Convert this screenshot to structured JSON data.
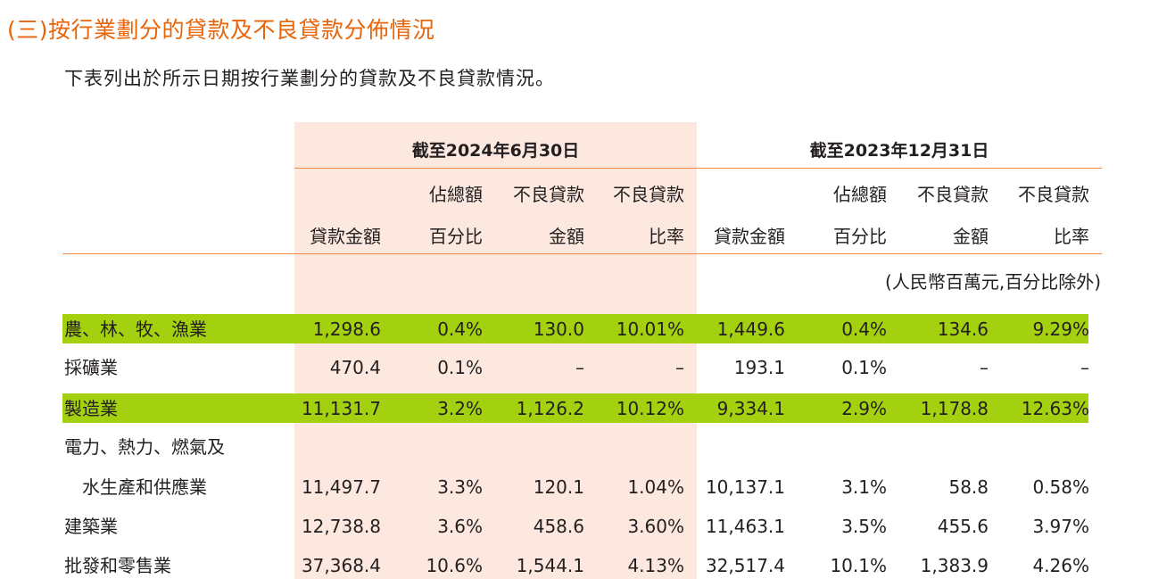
{
  "section_title": "(三)按行業劃分的貸款及不良貸款分佈情況",
  "intro": "下表列出於所示日期按行業劃分的貸款及不良貸款情況。",
  "table": {
    "groups": [
      "截至2024年6月30日",
      "截至2023年12月31日"
    ],
    "col_headers": [
      [
        "",
        "貸款金額"
      ],
      [
        "佔總額",
        "百分比"
      ],
      [
        "不良貸款",
        "金額"
      ],
      [
        "不良貸款",
        "比率"
      ],
      [
        "",
        "貸款金額"
      ],
      [
        "佔總額",
        "百分比"
      ],
      [
        "不良貸款",
        "金額"
      ],
      [
        "不良貸款",
        "比率"
      ]
    ],
    "unit_note": "(人民幣百萬元,百分比除外)",
    "rows": [
      {
        "label": "農、林、牧、漁業",
        "values": [
          "1,298.6",
          "0.4%",
          "130.0",
          "10.01%",
          "1,449.6",
          "0.4%",
          "134.6",
          "9.29%"
        ],
        "highlight": true
      },
      {
        "label": "採礦業",
        "values": [
          "470.4",
          "0.1%",
          "–",
          "–",
          "193.1",
          "0.1%",
          "–",
          "–"
        ],
        "highlight": false
      },
      {
        "label": "製造業",
        "values": [
          "11,131.7",
          "3.2%",
          "1,126.2",
          "10.12%",
          "9,334.1",
          "2.9%",
          "1,178.8",
          "12.63%"
        ],
        "highlight": true
      },
      {
        "label": "電力、熱力、燃氣及",
        "label2": "水生產和供應業",
        "values": [
          "11,497.7",
          "3.3%",
          "120.1",
          "1.04%",
          "10,137.1",
          "3.1%",
          "58.8",
          "0.58%"
        ],
        "highlight": false
      },
      {
        "label": "建築業",
        "values": [
          "12,738.8",
          "3.6%",
          "458.6",
          "3.60%",
          "11,463.1",
          "3.5%",
          "455.6",
          "3.97%"
        ],
        "highlight": false
      },
      {
        "label": "批發和零售業",
        "values": [
          "37,368.4",
          "10.6%",
          "1,544.1",
          "4.13%",
          "32,517.4",
          "10.1%",
          "1,383.9",
          "4.26%"
        ],
        "highlight": false
      }
    ]
  },
  "colors": {
    "accent_orange": "#e8650a",
    "rule_orange": "#f08a4b",
    "shade_peach": "#fce8df",
    "highlight_green": "#a4d10f"
  }
}
